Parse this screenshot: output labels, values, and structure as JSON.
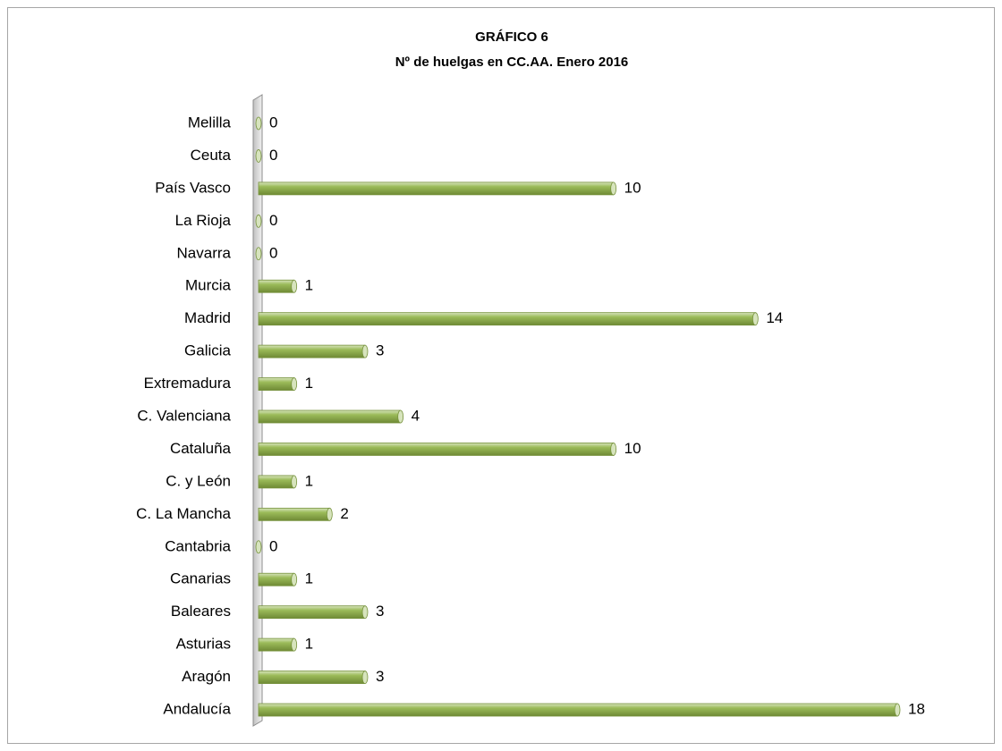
{
  "chart_data": {
    "type": "bar",
    "orientation": "horizontal",
    "title": "GRÁFICO 6",
    "subtitle": "Nº de huelgas en CC.AA. Enero 2016",
    "categories": [
      "Melilla",
      "Ceuta",
      "País Vasco",
      "La Rioja",
      "Navarra",
      "Murcia",
      "Madrid",
      "Galicia",
      "Extremadura",
      "C. Valenciana",
      "Cataluña",
      "C. y León",
      "C. La Mancha",
      "Cantabria",
      "Canarias",
      "Baleares",
      "Asturias",
      "Aragón",
      "Andalucía"
    ],
    "values": [
      0,
      0,
      10,
      0,
      0,
      1,
      14,
      3,
      1,
      4,
      10,
      1,
      2,
      0,
      1,
      3,
      1,
      3,
      18
    ],
    "color": "#9bbb59"
  }
}
